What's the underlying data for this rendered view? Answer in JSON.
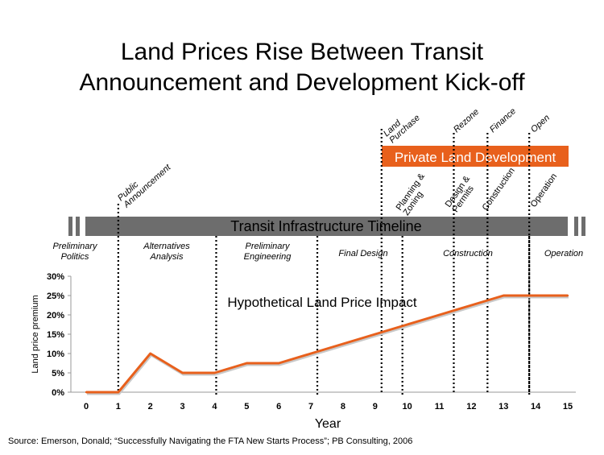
{
  "slide": {
    "title_line1": "Land Prices Rise Between Transit",
    "title_line2": "Announcement and Development Kick-off",
    "source": "Source: Emerson, Donald; “Successfully Navigating the FTA New Starts Process”; PB Consulting, 2006"
  },
  "timeline": {
    "transit_bar_label": "Transit Infrastructure Timeline",
    "private_bar_label": "Private Land Development",
    "milestones": [
      {
        "label": "Public Announcement",
        "year": 1.0
      },
      {
        "label": "Land Purchase",
        "year": 9.2
      },
      {
        "label": "Rezone",
        "year": 11.45
      },
      {
        "label": "Finance",
        "year": 12.5
      },
      {
        "label": "Open",
        "year": 13.8
      }
    ],
    "private_phases": [
      "Planning & Zoning",
      "Design & Permits",
      "Construction",
      "Operation"
    ],
    "transit_phases": [
      "Preliminary Politics",
      "Alternatives Analysis",
      "Preliminary Engineering",
      "Final Design",
      "Construction",
      "Operation"
    ],
    "phase_dividers": [
      1.0,
      4.05,
      7.2,
      9.85,
      13.8
    ],
    "private_dividers": [
      11.45,
      12.5
    ]
  },
  "chart_data": {
    "type": "line",
    "annotation": "Hypothetical Land Price Impact",
    "xlabel": "Year",
    "ylabel": "Land price premium",
    "x": [
      0,
      1,
      2,
      3,
      4,
      5,
      6,
      7,
      8,
      9,
      10,
      11,
      12,
      13,
      14,
      15
    ],
    "y": [
      0,
      0,
      10,
      5,
      5,
      7.5,
      7.5,
      10,
      12.5,
      15,
      17.5,
      20,
      22.5,
      25,
      25,
      25
    ],
    "xlim": [
      0,
      15
    ],
    "ylim": [
      0,
      30
    ],
    "xticks": [
      "0",
      "1",
      "2",
      "3",
      "4",
      "5",
      "6",
      "7",
      "8",
      "9",
      "10",
      "11",
      "12",
      "13",
      "14",
      "15"
    ],
    "yticks": [
      "0%",
      "5%",
      "10%",
      "15%",
      "20%",
      "25%",
      "30%"
    ],
    "line_color": "#E8601C",
    "grid": false
  }
}
